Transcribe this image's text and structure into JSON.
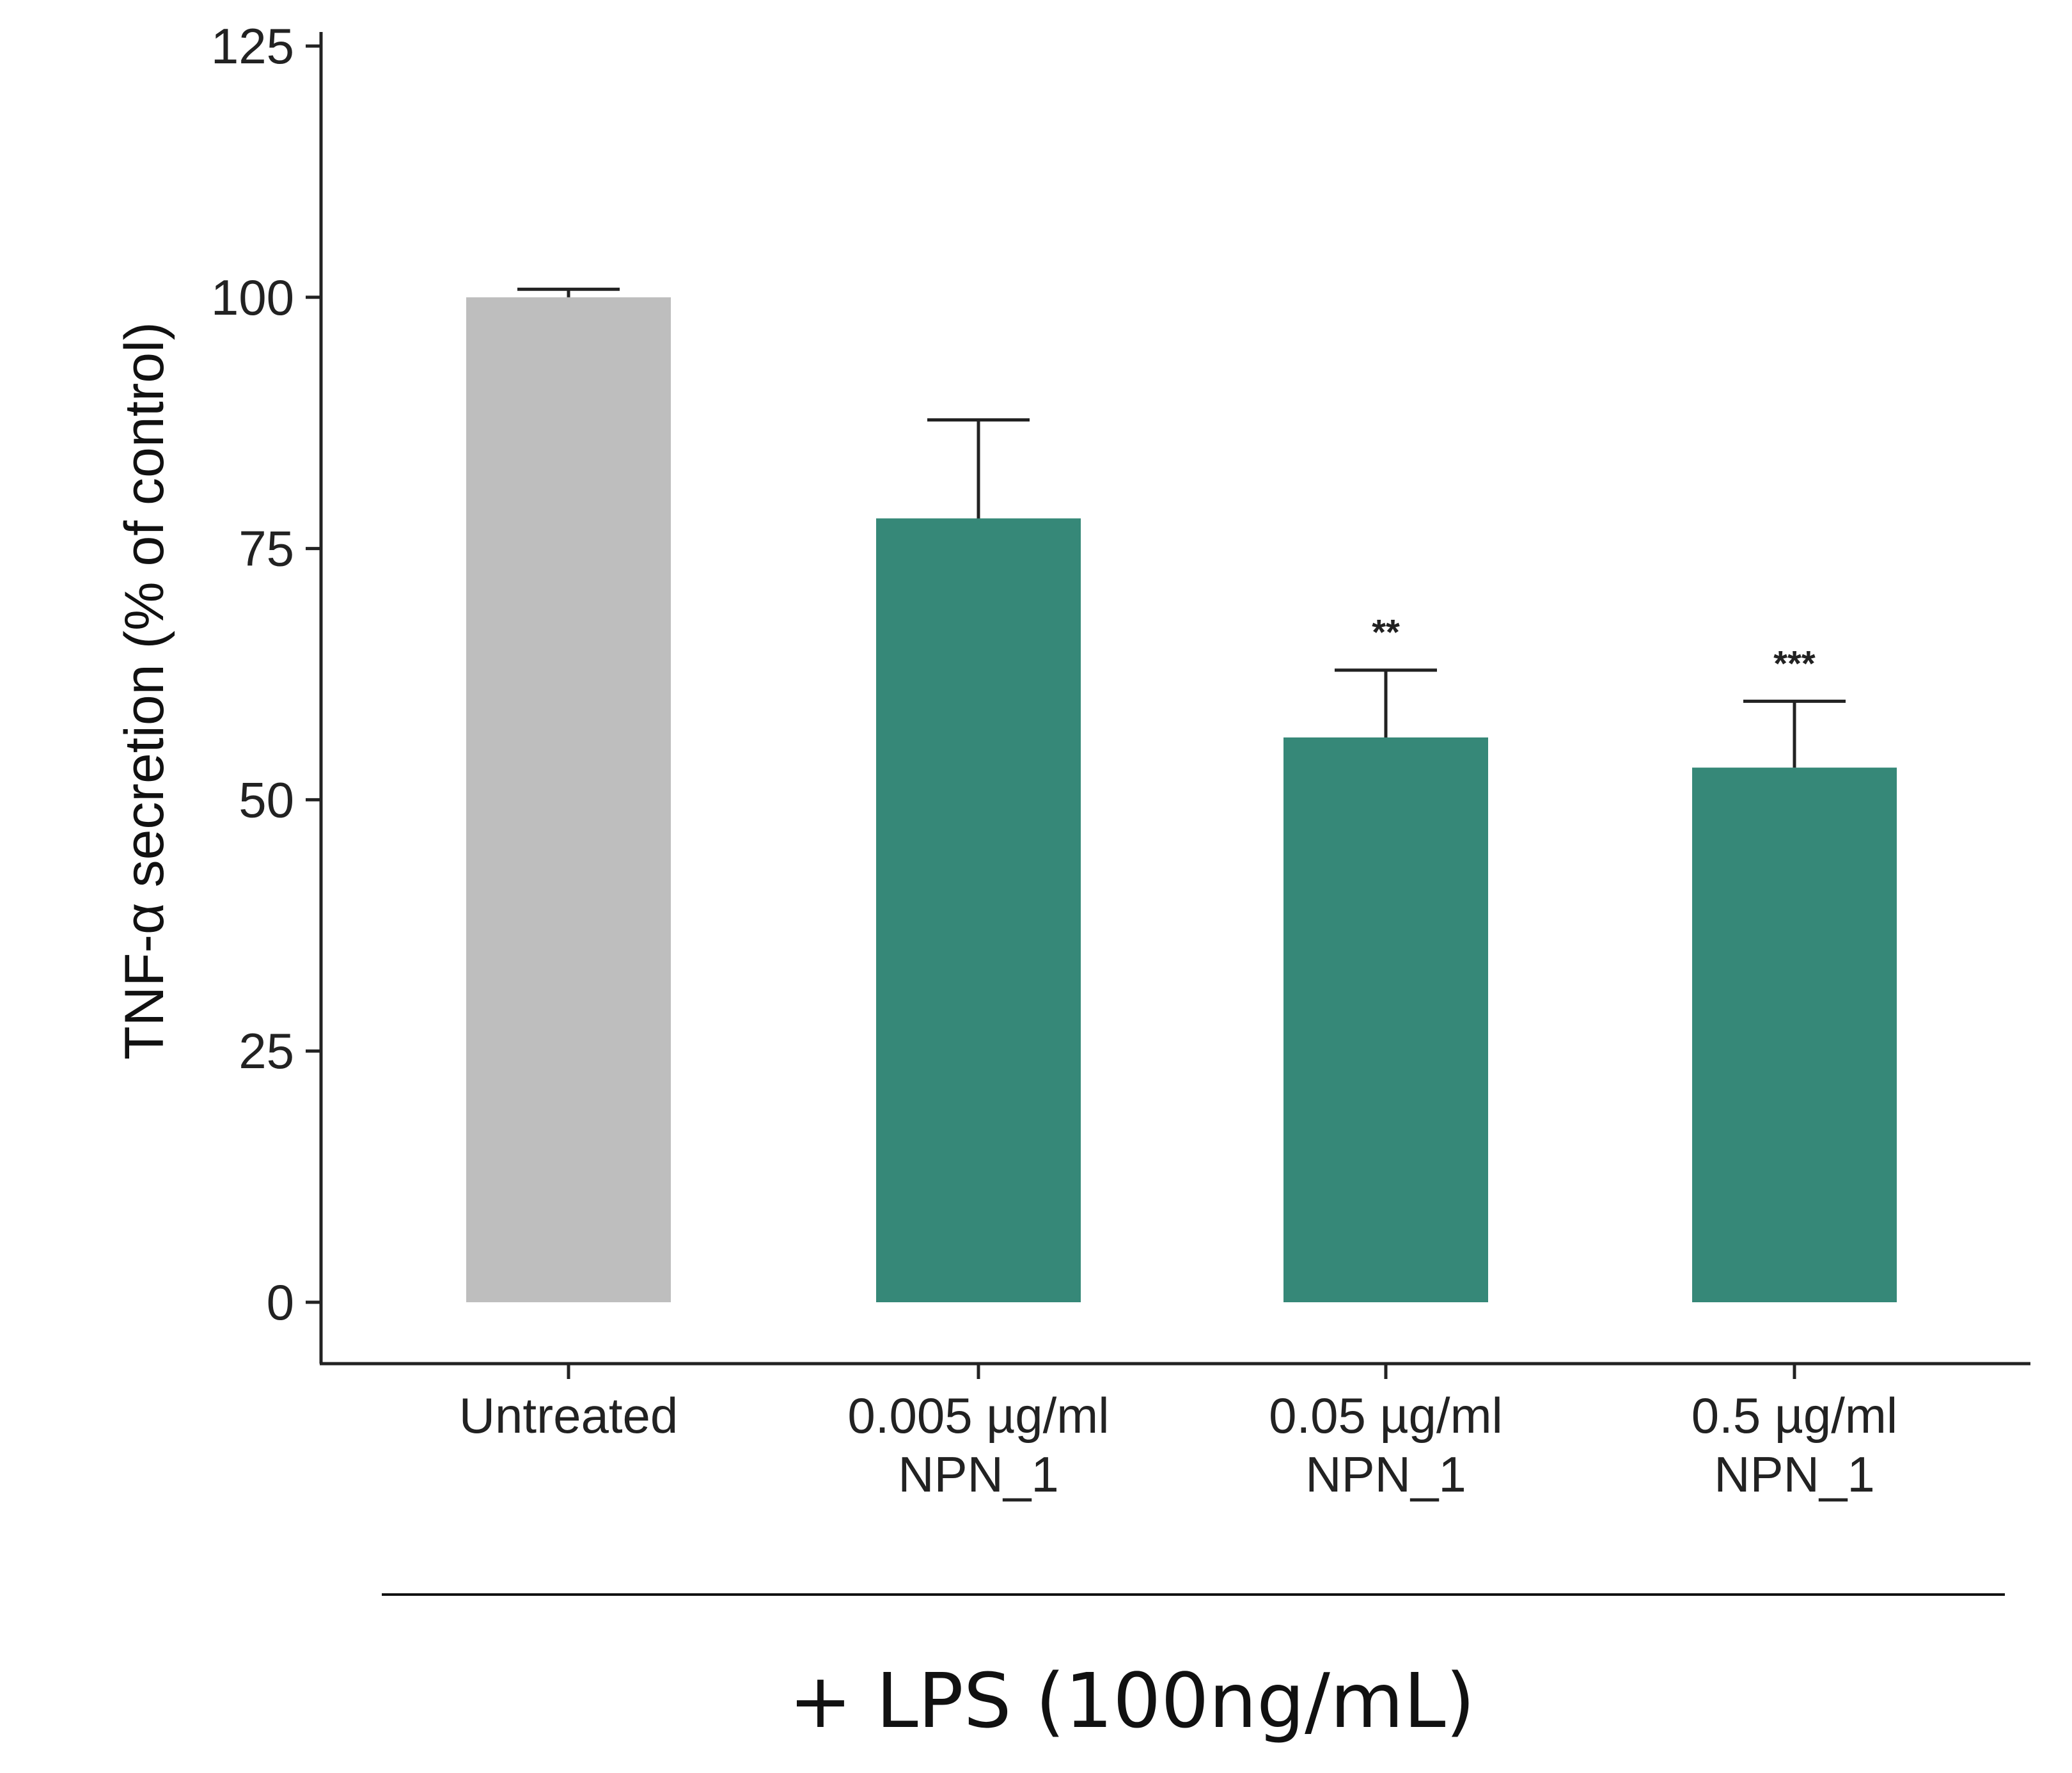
{
  "chart_data": {
    "type": "bar",
    "title": "",
    "xlabel": "",
    "ylabel": "TNF-α secretion (% of control)",
    "ylim": [
      -6,
      125
    ],
    "yticks": [
      0,
      25,
      50,
      75,
      100,
      125
    ],
    "categories": [
      [
        "Untreated"
      ],
      [
        "0.005 µg/ml",
        "NPN_1"
      ],
      [
        "0.05 µg/ml",
        "NPN_1"
      ],
      [
        "0.5 µg/ml",
        "NPN_1"
      ]
    ],
    "values": [
      100,
      78,
      56.2,
      53.2
    ],
    "error_upper": [
      100.8,
      87.8,
      62.9,
      59.8
    ],
    "significance": [
      "",
      "",
      "**",
      "***"
    ],
    "colors": [
      "#bebebe",
      "#368878",
      "#368878",
      "#368878"
    ],
    "group_label": "+ LPS (100ng/mL)",
    "grid": false,
    "legend": "none"
  }
}
